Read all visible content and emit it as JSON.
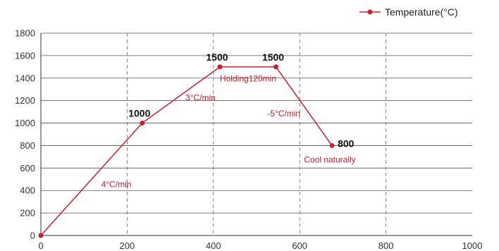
{
  "chart_data": {
    "type": "line",
    "title": "",
    "xlabel": "",
    "ylabel": "",
    "xlim": [
      0,
      1000
    ],
    "ylim": [
      0,
      1800
    ],
    "x_ticks": [
      "0",
      "200",
      "400",
      "600",
      "800",
      "1000"
    ],
    "y_ticks": [
      "0",
      "200",
      "400",
      "600",
      "800",
      "1000",
      "1200",
      "1400",
      "1600",
      "1800"
    ],
    "grid": {
      "horizontal": "solid",
      "vertical": "dashed"
    },
    "legend_position": "top-right",
    "series": [
      {
        "name": "Temperature(°C)",
        "color": "#c8202f",
        "x": [
          0,
          235,
          415,
          545,
          675
        ],
        "y": [
          0,
          1000,
          1500,
          1500,
          800
        ]
      }
    ],
    "point_labels": [
      {
        "x": 235,
        "y": 1000,
        "text": "1000"
      },
      {
        "x": 415,
        "y": 1500,
        "text": "1500"
      },
      {
        "x": 545,
        "y": 1500,
        "text": "1500"
      },
      {
        "x": 675,
        "y": 800,
        "text": "800"
      }
    ],
    "annotations": [
      {
        "x": 140,
        "y": 430,
        "text": "4°C/min"
      },
      {
        "x": 335,
        "y": 1200,
        "text": "3°C/min"
      },
      {
        "x": 415,
        "y": 1370,
        "text": "Holding120min"
      },
      {
        "x": 525,
        "y": 1060,
        "text": "-5°C/min"
      },
      {
        "x": 610,
        "y": 650,
        "text": "Cool naturally"
      }
    ]
  }
}
